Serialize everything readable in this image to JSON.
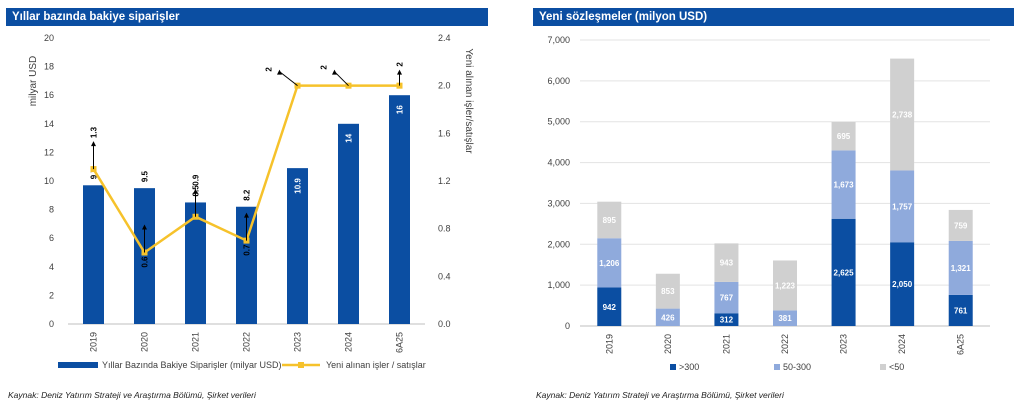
{
  "left_panel": {
    "title": "Yıllar bazında bakiye siparişler",
    "source": "Kaynak: Deniz Yatırım Strateji ve Araştırma Bölümü, Şirket verileri"
  },
  "right_panel": {
    "title": "Yeni sözleşmeler (milyon USD)",
    "source": "Kaynak: Deniz Yatırım Strateji ve Araştırma Bölümü, Şirket verileri"
  },
  "colors": {
    "header": "#0b4ea2",
    "bar_dark": "#0b4ea2",
    "bar_mid": "#8faadc",
    "bar_light": "#d0d0d0",
    "line": "#f6c22b"
  },
  "chart_data": [
    {
      "type": "bar",
      "title": "Yıllar bazında bakiye siparişler",
      "categories": [
        "2019",
        "2020",
        "2021",
        "2022",
        "2023",
        "2024",
        "6A25"
      ],
      "series": [
        {
          "name": "Yıllar Bazında Bakiye Siparişler (milyar USD)",
          "type": "bar",
          "axis": "left",
          "values": [
            9.7,
            9.5,
            8.5,
            8.2,
            10.9,
            14,
            16
          ],
          "labels": [
            "9.7",
            "9.5",
            "8.5",
            "8.2",
            "10.9",
            "14",
            "16"
          ]
        },
        {
          "name": "Yeni alınan işler / satışlar",
          "type": "line",
          "axis": "right",
          "values": [
            1.3,
            0.6,
            0.9,
            0.7,
            2.0,
            2.0,
            2.0
          ],
          "labels": [
            "1.3",
            "0.6",
            "0.9",
            "0.7",
            "2",
            "2",
            "2"
          ]
        }
      ],
      "ylabel": "milyar USD",
      "ylim": [
        0,
        20
      ],
      "yticks": [
        "0",
        "2",
        "4",
        "6",
        "8",
        "10",
        "12",
        "14",
        "16",
        "18",
        "20"
      ],
      "y2label": "Yeni alınan işler/satışlar",
      "y2lim": [
        0,
        2.4
      ],
      "y2ticks": [
        "0.0",
        "0.4",
        "0.8",
        "1.2",
        "1.6",
        "2.0",
        "2.4"
      ],
      "legend": "bottom"
    },
    {
      "type": "bar",
      "stacked": true,
      "title": "Yeni sözleşmeler (milyon USD)",
      "categories": [
        "2019",
        "2020",
        "2021",
        "2022",
        "2023",
        "2024",
        "6A25"
      ],
      "series": [
        {
          "name": ">300",
          "values": [
            942,
            0,
            312,
            0,
            2625,
            2050,
            761
          ],
          "labels": [
            "942",
            "",
            "312",
            "",
            "2,625",
            "2,050",
            "761"
          ]
        },
        {
          "name": "50-300",
          "values": [
            1206,
            426,
            767,
            381,
            1673,
            1757,
            1321
          ],
          "labels": [
            "1,206",
            "426",
            "767",
            "381",
            "1,673",
            "1,757",
            "1,321"
          ]
        },
        {
          "name": "<50",
          "values": [
            895,
            853,
            943,
            1223,
            695,
            2738,
            759
          ],
          "labels": [
            "895",
            "853",
            "943",
            "1,223",
            "695",
            "2,738",
            "759"
          ]
        }
      ],
      "ylim": [
        0,
        7000
      ],
      "yticks": [
        "0",
        "1,000",
        "2,000",
        "3,000",
        "4,000",
        "5,000",
        "6,000",
        "7,000"
      ],
      "legend": "bottom"
    }
  ]
}
